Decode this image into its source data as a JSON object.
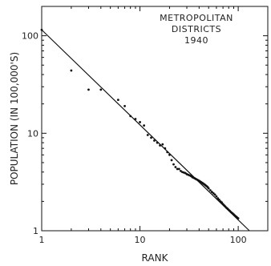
{
  "chart_data": {
    "type": "scatter",
    "title_lines": [
      "METROPOLITAN",
      "DISTRICTS",
      "1940"
    ],
    "xlabel": "RANK",
    "ylabel": "POPULATION (IN 100,000'S)",
    "x_scale": "log",
    "y_scale": "log",
    "xlim": [
      1,
      200
    ],
    "ylim": [
      1,
      200
    ],
    "x_ticks": [
      {
        "value": 1,
        "label": "1"
      },
      {
        "value": 10,
        "label": "10"
      },
      {
        "value": 100,
        "label": "100"
      }
    ],
    "y_ticks": [
      {
        "value": 1,
        "label": "1"
      },
      {
        "value": 10,
        "label": "10"
      },
      {
        "value": 100,
        "label": "100"
      }
    ],
    "grid": false,
    "series": [
      {
        "points": [
          {
            "x": 1,
            "y": 115
          },
          {
            "x": 2,
            "y": 44
          },
          {
            "x": 3,
            "y": 28
          },
          {
            "x": 4,
            "y": 28
          },
          {
            "x": 6,
            "y": 22
          },
          {
            "x": 7,
            "y": 19
          },
          {
            "x": 8,
            "y": 15
          },
          {
            "x": 9,
            "y": 14
          },
          {
            "x": 10,
            "y": 13
          },
          {
            "x": 11,
            "y": 12
          },
          {
            "x": 12,
            "y": 9.6
          },
          {
            "x": 13,
            "y": 9.0
          },
          {
            "x": 14,
            "y": 8.4
          },
          {
            "x": 15,
            "y": 8.0
          },
          {
            "x": 16,
            "y": 7.5
          },
          {
            "x": 17,
            "y": 7.7
          },
          {
            "x": 18,
            "y": 7.0
          },
          {
            "x": 19,
            "y": 6.4
          },
          {
            "x": 20,
            "y": 6.0
          },
          {
            "x": 21,
            "y": 5.3
          },
          {
            "x": 22,
            "y": 4.8
          },
          {
            "x": 23,
            "y": 4.5
          },
          {
            "x": 24,
            "y": 4.3
          },
          {
            "x": 25,
            "y": 4.3
          },
          {
            "x": 26,
            "y": 4.1
          },
          {
            "x": 27,
            "y": 4.0
          },
          {
            "x": 28,
            "y": 3.95
          },
          {
            "x": 29,
            "y": 3.9
          },
          {
            "x": 30,
            "y": 3.8
          },
          {
            "x": 31,
            "y": 3.75
          },
          {
            "x": 32,
            "y": 3.7
          },
          {
            "x": 33,
            "y": 3.65
          },
          {
            "x": 34,
            "y": 3.55
          },
          {
            "x": 35,
            "y": 3.5
          },
          {
            "x": 36,
            "y": 3.45
          },
          {
            "x": 37,
            "y": 3.4
          },
          {
            "x": 38,
            "y": 3.35
          },
          {
            "x": 39,
            "y": 3.3
          },
          {
            "x": 40,
            "y": 3.25
          },
          {
            "x": 41,
            "y": 3.2
          },
          {
            "x": 42,
            "y": 3.15
          },
          {
            "x": 43,
            "y": 3.1
          },
          {
            "x": 44,
            "y": 3.05
          },
          {
            "x": 45,
            "y": 3.0
          },
          {
            "x": 46,
            "y": 2.95
          },
          {
            "x": 47,
            "y": 2.9
          },
          {
            "x": 48,
            "y": 2.85
          },
          {
            "x": 49,
            "y": 2.8
          },
          {
            "x": 50,
            "y": 2.72
          },
          {
            "x": 52,
            "y": 2.6
          },
          {
            "x": 54,
            "y": 2.5
          },
          {
            "x": 56,
            "y": 2.42
          },
          {
            "x": 58,
            "y": 2.35
          },
          {
            "x": 60,
            "y": 2.25
          },
          {
            "x": 62,
            "y": 2.15
          },
          {
            "x": 64,
            "y": 2.08
          },
          {
            "x": 66,
            "y": 2.0
          },
          {
            "x": 68,
            "y": 1.95
          },
          {
            "x": 70,
            "y": 1.88
          },
          {
            "x": 72,
            "y": 1.82
          },
          {
            "x": 74,
            "y": 1.77
          },
          {
            "x": 76,
            "y": 1.72
          },
          {
            "x": 78,
            "y": 1.68
          },
          {
            "x": 80,
            "y": 1.64
          },
          {
            "x": 82,
            "y": 1.6
          },
          {
            "x": 84,
            "y": 1.56
          },
          {
            "x": 86,
            "y": 1.53
          },
          {
            "x": 88,
            "y": 1.5
          },
          {
            "x": 90,
            "y": 1.47
          },
          {
            "x": 92,
            "y": 1.44
          },
          {
            "x": 94,
            "y": 1.41
          },
          {
            "x": 96,
            "y": 1.39
          },
          {
            "x": 98,
            "y": 1.36
          },
          {
            "x": 100,
            "y": 1.34
          }
        ]
      }
    ],
    "fit_line": {
      "start": {
        "x": 1,
        "y": 115
      },
      "end": {
        "x": 130,
        "y": 1
      }
    }
  },
  "colors": {
    "ink": "#111111",
    "background": "#ffffff"
  }
}
